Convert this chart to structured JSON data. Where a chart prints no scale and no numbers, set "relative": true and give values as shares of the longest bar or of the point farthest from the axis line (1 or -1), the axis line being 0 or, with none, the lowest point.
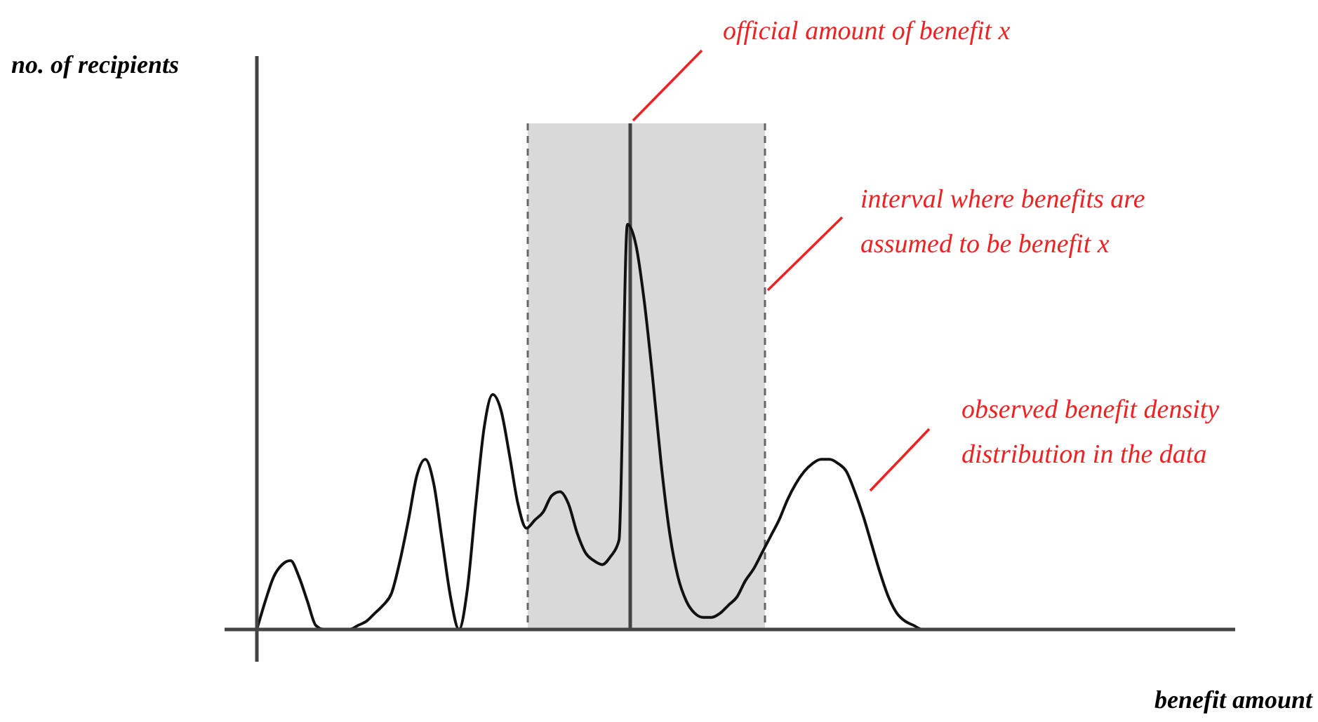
{
  "chart_data": {
    "type": "line",
    "relative": true,
    "categories": [
      null,
      null,
      null,
      null,
      null,
      null,
      null,
      null,
      null,
      null,
      null,
      null,
      null,
      null,
      null,
      null,
      null,
      null,
      null,
      null,
      null,
      null,
      null,
      null,
      null,
      null,
      null,
      null,
      null,
      null,
      null,
      null,
      null,
      null,
      null,
      null,
      null,
      null,
      null,
      null,
      null,
      null,
      null,
      null,
      null,
      null,
      null,
      null,
      null,
      null,
      null,
      null,
      null,
      null,
      null,
      null,
      null,
      null,
      null,
      null,
      null,
      null,
      null,
      null,
      null,
      null,
      null,
      null,
      null,
      null,
      null,
      null,
      null,
      null,
      null,
      null,
      null,
      null,
      null,
      null,
      null
    ],
    "series": [
      {
        "color": "#111111",
        "values": [
          0,
          0.07,
          0.13,
          0.16,
          0.17,
          0.13,
          0.07,
          0.01,
          0,
          0,
          0,
          0,
          0.01,
          0.02,
          0.04,
          0.06,
          0.09,
          0.17,
          0.27,
          0.38,
          0.42,
          0.36,
          0.22,
          0.08,
          0,
          0.1,
          0.31,
          0.5,
          0.58,
          0.54,
          0.43,
          0.31,
          0.25,
          0.27,
          0.29,
          0.33,
          0.34,
          0.31,
          0.24,
          0.19,
          0.17,
          0.16,
          0.18,
          0.22,
          1,
          0.95,
          0.81,
          0.62,
          0.41,
          0.24,
          0.13,
          0.07,
          0.04,
          0.03,
          0.03,
          0.04,
          0.06,
          0.08,
          0.12,
          0.15,
          0.19,
          0.23,
          0.27,
          0.32,
          0.36,
          0.39,
          0.41,
          0.42,
          0.42,
          0.41,
          0.39,
          0.34,
          0.28,
          0.21,
          0.14,
          0.08,
          0.04,
          0.02,
          0.01,
          0,
          0
        ]
      }
    ],
    "annotations": [
      "no. of recipients",
      "official amount of benefit x",
      "interval where benefits are assumed to be benefit x",
      "observed benefit density distribution in the data",
      "benefit amount"
    ]
  }
}
